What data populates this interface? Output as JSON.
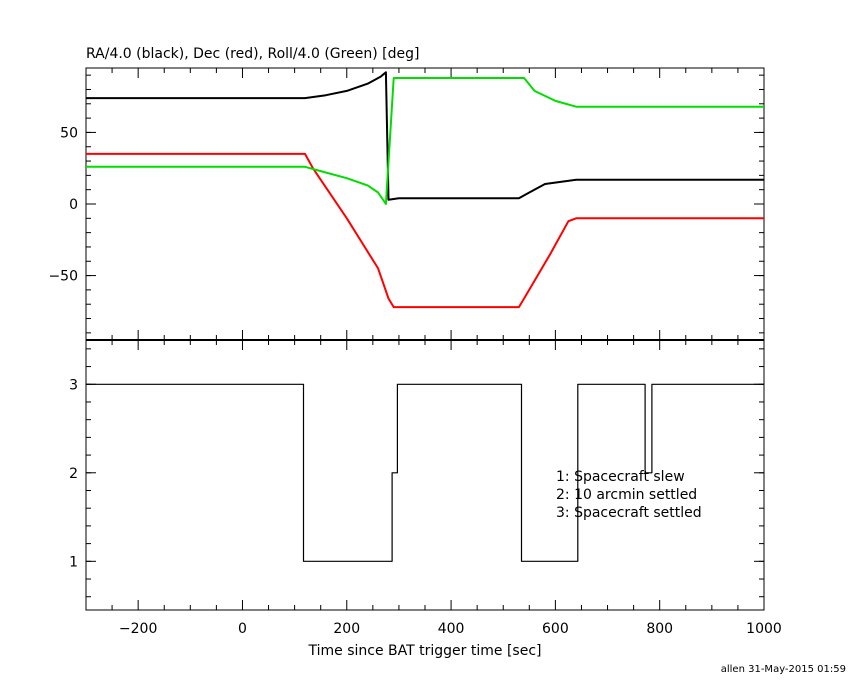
{
  "chart_data": [
    {
      "type": "line",
      "title": "RA/4.0 (black), Dec (red), Roll/4.0 (Green) [deg]",
      "xlim": [
        -300,
        1000
      ],
      "ylim": [
        -95,
        95
      ],
      "y_ticks": [
        -50,
        0,
        50
      ],
      "y_tick_labels": [
        "−50",
        "0",
        "50"
      ],
      "grid": false,
      "series": [
        {
          "color": "#000000",
          "x": [
            -300,
            120,
            160,
            200,
            240,
            265,
            275,
            280,
            300,
            340,
            530,
            550,
            580,
            640,
            1000
          ],
          "y": [
            74,
            74,
            76,
            79,
            84,
            89,
            92,
            3,
            4,
            4,
            4,
            8,
            14,
            17,
            17
          ]
        },
        {
          "color": "#ff0000",
          "x": [
            -300,
            120,
            135,
            200,
            260,
            280,
            290,
            530,
            540,
            590,
            625,
            640,
            1000
          ],
          "y": [
            35,
            35,
            25,
            -10,
            -45,
            -66,
            -72,
            -72,
            -66,
            -35,
            -12,
            -10,
            -10
          ]
        },
        {
          "color": "#00dd00",
          "x": [
            -300,
            120,
            150,
            200,
            240,
            260,
            275,
            290,
            540,
            560,
            600,
            640,
            1000
          ],
          "y": [
            26,
            26,
            23,
            18,
            13,
            8,
            0,
            88,
            88,
            79,
            72,
            68,
            68
          ]
        }
      ]
    },
    {
      "type": "line",
      "xlabel": "Time since BAT trigger time [sec]",
      "xlim": [
        -300,
        1000
      ],
      "ylim": [
        0.45,
        3.5
      ],
      "x_ticks": [
        -200,
        0,
        200,
        400,
        600,
        800,
        1000
      ],
      "x_tick_labels": [
        "−200",
        "0",
        "200",
        "400",
        "600",
        "800",
        "1000"
      ],
      "y_ticks": [
        1,
        2,
        3
      ],
      "y_tick_labels": [
        "1",
        "2",
        "3"
      ],
      "legend": [
        "1: Spacecraft slew",
        "2: 10 arcmin settled",
        "3: Spacecraft settled"
      ],
      "legend_placement": "right",
      "series": [
        {
          "color": "#000000",
          "step": true,
          "x": [
            -300,
            117,
            117,
            287,
            287,
            297,
            297,
            535,
            535,
            643,
            643,
            772,
            772,
            785,
            785,
            1000
          ],
          "y": [
            3,
            3,
            1,
            1,
            2,
            2,
            3,
            3,
            1,
            1,
            3,
            3,
            2,
            2,
            3,
            3
          ]
        }
      ]
    }
  ],
  "footer": "allen 31-May-2015 01:59"
}
